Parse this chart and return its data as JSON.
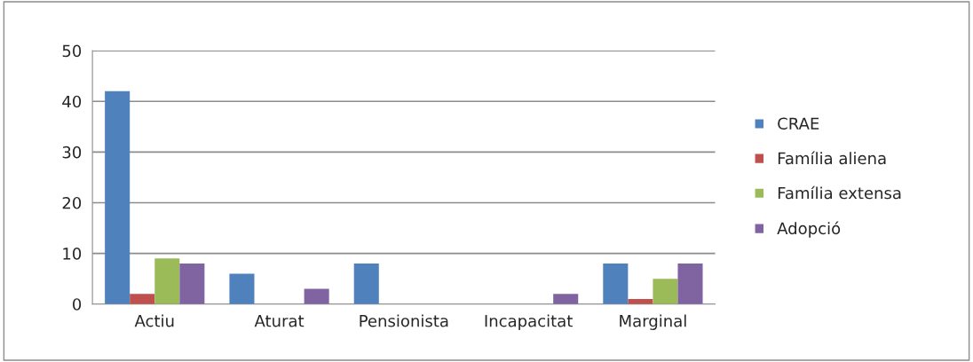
{
  "chart_data": {
    "type": "bar",
    "categories": [
      "Actiu",
      "Aturat",
      "Pensionista",
      "Incapacitat",
      "Marginal"
    ],
    "series": [
      {
        "name": "CRAE",
        "color": "#4f81bd",
        "values": [
          42,
          6,
          8,
          0,
          8
        ]
      },
      {
        "name": "Família aliena",
        "color": "#c0504d",
        "values": [
          2,
          0,
          0,
          0,
          1
        ]
      },
      {
        "name": "Família extensa",
        "color": "#9bbb59",
        "values": [
          9,
          0,
          0,
          0,
          5
        ]
      },
      {
        "name": "Adopció",
        "color": "#8064a2",
        "values": [
          8,
          3,
          0,
          2,
          8
        ]
      }
    ],
    "ylim": [
      0,
      50
    ],
    "yticks": [
      0,
      10,
      20,
      30,
      40,
      50
    ],
    "grid": "y",
    "legend": "right"
  }
}
